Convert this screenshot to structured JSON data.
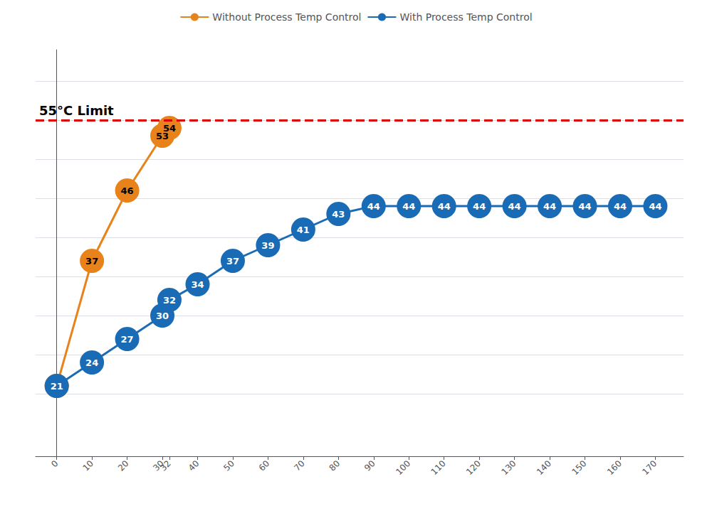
{
  "chart_data": {
    "type": "line",
    "series": [
      {
        "name": "Without Process Temp Control",
        "color": "#E8821A",
        "marker": "circle",
        "x": [
          0,
          10,
          20,
          30,
          32
        ],
        "values": [
          21,
          37,
          46,
          53,
          54
        ]
      },
      {
        "name": "With Process Temp Control",
        "color": "#1A6BB5",
        "marker": "circle",
        "x": [
          0,
          10,
          20,
          30,
          32,
          40,
          50,
          60,
          70,
          80,
          90,
          100,
          110,
          120,
          130,
          140,
          150,
          160,
          170
        ],
        "values": [
          21,
          24,
          27,
          30,
          32,
          34,
          37,
          39,
          41,
          43,
          44,
          44,
          44,
          44,
          44,
          44,
          44,
          44,
          44
        ]
      }
    ],
    "xlim": [
      -6,
      178
    ],
    "xticks": [
      0,
      10,
      20,
      30,
      32,
      40,
      50,
      60,
      70,
      80,
      90,
      100,
      110,
      120,
      130,
      140,
      150,
      160,
      170
    ],
    "ylim": [
      12,
      64
    ],
    "yticks": [
      20,
      25,
      30,
      35,
      40,
      45,
      50,
      55,
      60
    ],
    "tick_labels": "x",
    "grid": true,
    "legend": "top",
    "data_labels": true,
    "annotations": [
      {
        "text": "55°C Limit",
        "y": 55,
        "color": "#DD0000",
        "line_style": "dashed"
      }
    ]
  }
}
